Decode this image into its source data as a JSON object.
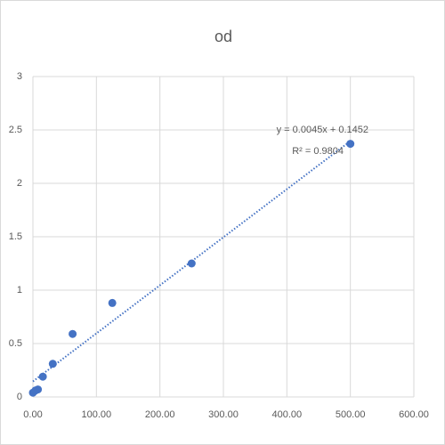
{
  "chart_data": {
    "type": "scatter",
    "title": "od",
    "x": [
      0,
      3.9,
      7.8,
      15.6,
      31.25,
      62.5,
      125,
      250,
      500
    ],
    "series": [
      {
        "name": "od",
        "color": "#4472c4",
        "values": [
          0.04,
          0.06,
          0.07,
          0.19,
          0.31,
          0.59,
          0.88,
          1.25,
          2.37
        ]
      }
    ],
    "xlim": [
      0,
      600
    ],
    "xticks": [
      {
        "value": 0,
        "label": "0.00"
      },
      {
        "value": 100,
        "label": "100.00"
      },
      {
        "value": 200,
        "label": "200.00"
      },
      {
        "value": 300,
        "label": "300.00"
      },
      {
        "value": 400,
        "label": "400.00"
      },
      {
        "value": 500,
        "label": "500.00"
      },
      {
        "value": 600,
        "label": "600.00"
      }
    ],
    "ylim": [
      0,
      3
    ],
    "yticks": [
      0,
      0.5,
      1,
      1.5,
      2,
      2.5,
      3
    ],
    "grid": true,
    "trendline": {
      "slope": 0.0045,
      "intercept": 0.1452,
      "color": "#4472c4",
      "equation": "y = 0.0045x + 0.1452",
      "r2_label": "R² = 0.9804"
    }
  }
}
